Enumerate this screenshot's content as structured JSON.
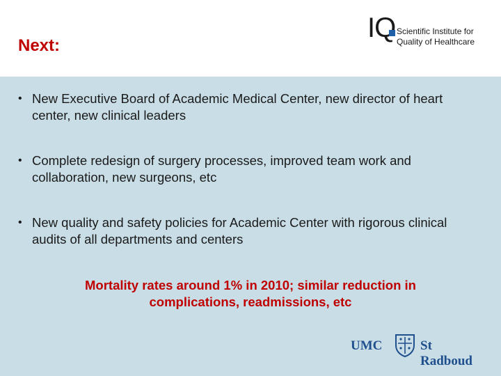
{
  "slide": {
    "title": "Next:"
  },
  "iq_logo": {
    "letters": "IQ",
    "line1": "Scientific Institute for",
    "line2": "Quality of Healthcare"
  },
  "bullets": [
    {
      "text": "New Executive Board of Academic Medical Center, new director of heart center, new clinical leaders"
    },
    {
      "text": "Complete redesign of surgery processes, improved team work and collaboration, new surgeons, etc"
    },
    {
      "text": "New quality and safety policies for Academic Center with rigorous clinical audits of all departments and centers"
    }
  ],
  "highlight": {
    "line1": "Mortality rates around 1% in 2010; similar reduction in",
    "line2": "complications, readmissions, etc"
  },
  "umc_logo": {
    "left_text": "UMC",
    "right_text": "St Radboud"
  },
  "colors": {
    "title": "#c00000",
    "content_bg": "#c8dde6",
    "logo_blue": "#1f4f8c"
  }
}
